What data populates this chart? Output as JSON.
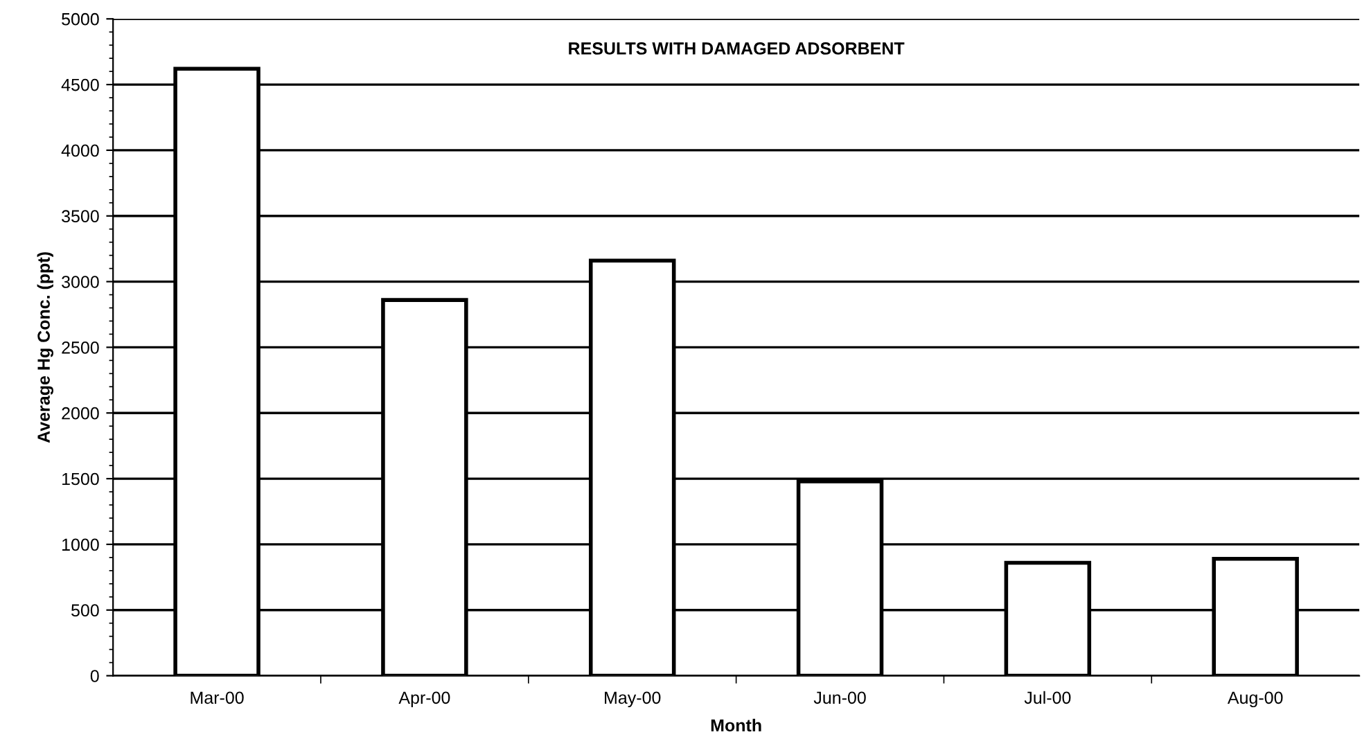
{
  "chart_data": {
    "type": "bar",
    "title": "RESULTS WITH DAMAGED ADSORBENT",
    "xlabel": "Month",
    "ylabel": "Average Hg Conc. (ppt)",
    "categories": [
      "Mar-00",
      "Apr-00",
      "May-00",
      "Jun-00",
      "Jul-00",
      "Aug-00"
    ],
    "values": [
      4620,
      2860,
      3160,
      1480,
      860,
      890
    ],
    "color": "#ffffff",
    "ylim": [
      0,
      5000
    ],
    "yticks": [
      0,
      500,
      1000,
      1500,
      2000,
      2500,
      3000,
      3500,
      4000,
      4500,
      5000
    ],
    "grid": "y",
    "legend": false
  }
}
